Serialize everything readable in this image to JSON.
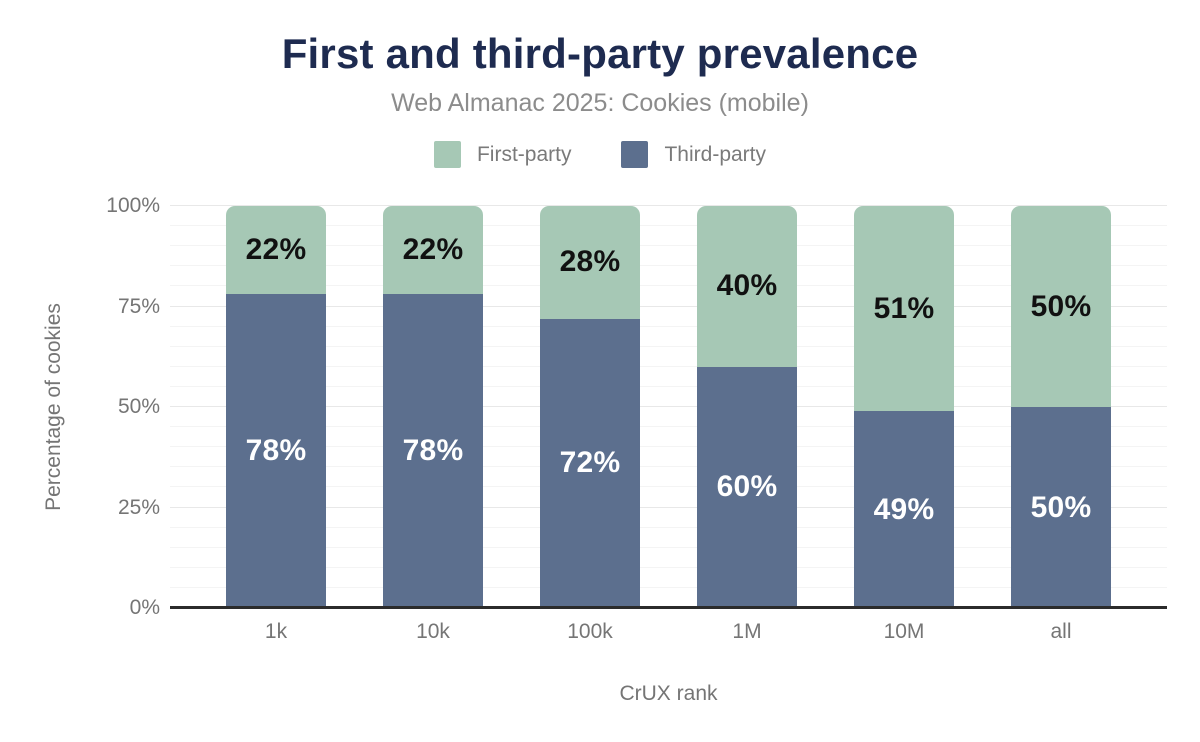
{
  "header": {
    "title": "First and third-party prevalence",
    "subtitle": "Web Almanac 2025: Cookies (mobile)"
  },
  "colors": {
    "title_text": "#1e2b50",
    "subtitle_text": "#8c8c8c",
    "axis_text": "#757575",
    "legend_text": "#7a7a7a",
    "axis_line": "#2b2b2b",
    "grid_minor": "#f4f4f4",
    "grid_major": "#e8e8e8"
  },
  "chart_data": {
    "type": "bar",
    "stacked": true,
    "title": "First and third-party prevalence",
    "subtitle": "Web Almanac 2025: Cookies (mobile)",
    "categories": [
      "1k",
      "10k",
      "100k",
      "1M",
      "10M",
      "all"
    ],
    "series": [
      {
        "name": "First-party",
        "color": "#a6c8b5",
        "label_color": "#111111",
        "stack_position": "top",
        "values": [
          22,
          22,
          28,
          40,
          51,
          50
        ]
      },
      {
        "name": "Third-party",
        "color": "#5c6f8e",
        "label_color": "#ffffff",
        "stack_position": "bottom",
        "values": [
          78,
          78,
          72,
          60,
          49,
          50
        ]
      }
    ],
    "data_label_suffix": "%",
    "xlabel": "CrUX rank",
    "ylabel": "Percentage of cookies",
    "ylim": [
      0,
      100
    ],
    "yticks": [
      0,
      25,
      50,
      75,
      100
    ],
    "ytick_suffix": "%",
    "minor_grid_step": 5,
    "major_grid_step": 25,
    "grid": "horizontal",
    "legend_position": "top"
  }
}
